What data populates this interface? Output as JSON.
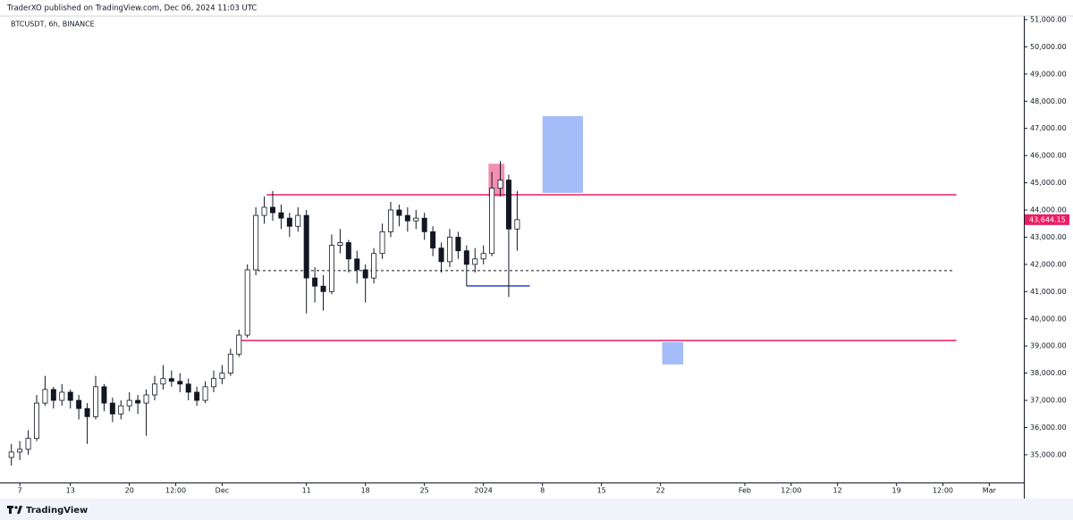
{
  "header": {
    "text": "TraderXO published on TradingView.com, Dec 06, 2024 11:03 UTC"
  },
  "footer": {
    "brand": "TradingView"
  },
  "chart_data": {
    "type": "candlestick",
    "title": "BTCUSDT, 6h, BINANCE",
    "up_color": "#ffffff",
    "down_color": "#131722",
    "edge_color": "#131722",
    "x": [
      -1,
      0,
      1,
      2,
      3,
      4,
      5,
      6,
      7,
      8,
      9,
      10,
      11,
      12,
      13,
      14,
      15,
      16,
      17,
      18,
      19,
      20,
      21,
      22,
      23,
      24,
      25,
      26,
      27,
      28,
      29,
      30,
      31,
      32,
      33,
      34,
      35,
      36,
      37,
      38,
      39,
      40,
      41,
      42,
      43,
      44,
      45,
      46,
      47,
      48,
      49,
      50,
      51,
      52,
      53,
      54,
      55,
      56,
      57,
      58,
      59
    ],
    "open": [
      34900,
      35100,
      35200,
      35600,
      36900,
      37400,
      37000,
      37300,
      37000,
      36700,
      36400,
      37500,
      36900,
      36500,
      36800,
      37000,
      36900,
      37200,
      37600,
      37800,
      37700,
      37600,
      37300,
      37000,
      37500,
      37800,
      38000,
      38700,
      39400,
      41800,
      43800,
      44100,
      43900,
      43700,
      43400,
      43800,
      41500,
      41200,
      41000,
      42700,
      42800,
      42200,
      41800,
      41500,
      42400,
      43200,
      44000,
      43800,
      43600,
      43700,
      43200,
      42600,
      42100,
      43000,
      42500,
      42000,
      42200,
      42400,
      44800,
      45100,
      43300
    ],
    "high": [
      35400,
      35500,
      35900,
      37200,
      37900,
      37500,
      37600,
      37400,
      37200,
      36900,
      37900,
      37600,
      37100,
      37000,
      37300,
      37200,
      37400,
      37900,
      38300,
      38100,
      38000,
      37800,
      37500,
      37700,
      38100,
      38300,
      38900,
      39600,
      42000,
      44100,
      44500,
      44700,
      44200,
      43900,
      44100,
      44000,
      41900,
      41600,
      43100,
      43300,
      42900,
      42500,
      42000,
      42600,
      43500,
      44300,
      44200,
      44100,
      44000,
      43900,
      43400,
      42800,
      43300,
      43200,
      42700,
      42600,
      42700,
      45400,
      45800,
      45300,
      44700
    ],
    "low": [
      34600,
      34800,
      35000,
      35500,
      36800,
      36700,
      36800,
      36700,
      36300,
      35400,
      36300,
      36600,
      36200,
      36300,
      36600,
      36500,
      35700,
      37000,
      37400,
      37500,
      37300,
      37000,
      36800,
      36900,
      37300,
      37600,
      37900,
      38600,
      39300,
      41600,
      43500,
      43600,
      43300,
      43000,
      43200,
      40200,
      40600,
      40300,
      40900,
      42400,
      41700,
      41300,
      40600,
      41300,
      42200,
      43000,
      43400,
      43200,
      43300,
      42900,
      42300,
      41700,
      41900,
      42200,
      41200,
      41700,
      42000,
      42300,
      44500,
      40800,
      42500
    ],
    "close": [
      35100,
      35200,
      35600,
      36900,
      37400,
      37000,
      37300,
      37000,
      36700,
      36400,
      37500,
      36900,
      36500,
      36800,
      37000,
      36900,
      37200,
      37600,
      37800,
      37700,
      37600,
      37300,
      37000,
      37500,
      37800,
      38000,
      38700,
      39400,
      41800,
      43800,
      44100,
      43900,
      43700,
      43400,
      43800,
      41500,
      41200,
      41000,
      42700,
      42800,
      42200,
      41800,
      41500,
      42400,
      43200,
      44000,
      43800,
      43600,
      43700,
      43200,
      42600,
      42100,
      43000,
      42500,
      42000,
      42200,
      42400,
      44800,
      45100,
      43300,
      43644.15
    ],
    "last_price": {
      "value": 43644.15,
      "label": "43,644.15"
    },
    "last_price_color": "#e91e63",
    "xlim": [
      -1.5,
      119.1
    ],
    "xticks": [
      {
        "value": 0,
        "label": "7"
      },
      {
        "value": 6,
        "label": "13"
      },
      {
        "value": 13,
        "label": "20"
      },
      {
        "value": 18.5,
        "label": "12:00"
      },
      {
        "value": 24,
        "label": "Dec"
      },
      {
        "value": 34,
        "label": "11"
      },
      {
        "value": 41,
        "label": "18"
      },
      {
        "value": 48,
        "label": "25"
      },
      {
        "value": 55,
        "label": "2024"
      },
      {
        "value": 62,
        "label": "8"
      },
      {
        "value": 69,
        "label": "15"
      },
      {
        "value": 76,
        "label": "22"
      },
      {
        "value": 86,
        "label": "Feb"
      },
      {
        "value": 91.5,
        "label": "12:00"
      },
      {
        "value": 97,
        "label": "12"
      },
      {
        "value": 104,
        "label": "19"
      },
      {
        "value": 109.5,
        "label": "12:00"
      },
      {
        "value": 115,
        "label": "Mar"
      }
    ],
    "ylim": [
      33980,
      51130
    ],
    "yticks": [
      {
        "value": 35000,
        "label": "35,000.00"
      },
      {
        "value": 36000,
        "label": "36,000.00"
      },
      {
        "value": 37000,
        "label": "37,000.00"
      },
      {
        "value": 38000,
        "label": "38,000.00"
      },
      {
        "value": 39000,
        "label": "39,000.00"
      },
      {
        "value": 40000,
        "label": "40,000.00"
      },
      {
        "value": 41000,
        "label": "41,000.00"
      },
      {
        "value": 42000,
        "label": "42,000.00"
      },
      {
        "value": 43000,
        "label": "43,000.00"
      },
      {
        "value": 44000,
        "label": "44,000.00"
      },
      {
        "value": 45000,
        "label": "45,000.00"
      },
      {
        "value": 46000,
        "label": "46,000.00"
      },
      {
        "value": 47000,
        "label": "47,000.00"
      },
      {
        "value": 48000,
        "label": "48,000.00"
      },
      {
        "value": 49000,
        "label": "49,000.00"
      },
      {
        "value": 50000,
        "label": "50,000.00"
      },
      {
        "value": 51000,
        "label": "51,000.00"
      }
    ],
    "lines": [
      {
        "y": 44560,
        "x0": 29.3,
        "x1": 111.1,
        "color": "#e91e63",
        "style": "solid"
      },
      {
        "y": 39200,
        "x0": 25.8,
        "x1": 111.1,
        "color": "#e91e63",
        "style": "solid"
      },
      {
        "y": 41770,
        "x0": 28.2,
        "x1": 110.9,
        "color": "#131722",
        "style": "dashed"
      },
      {
        "y": 41210,
        "x0": 53.0,
        "x1": 60.5,
        "color": "#2a3fd8",
        "style": "solid"
      }
    ],
    "zones": [
      {
        "x0": 55.6,
        "x1": 57.5,
        "y0": 44500,
        "y1": 45700,
        "color": "#f48fb1"
      },
      {
        "x0": 62.0,
        "x1": 66.8,
        "y0": 44630,
        "y1": 47450,
        "color": "#a4bcf7"
      },
      {
        "x0": 76.2,
        "x1": 78.7,
        "y0": 38320,
        "y1": 39140,
        "color": "#a4bcf7"
      }
    ]
  }
}
